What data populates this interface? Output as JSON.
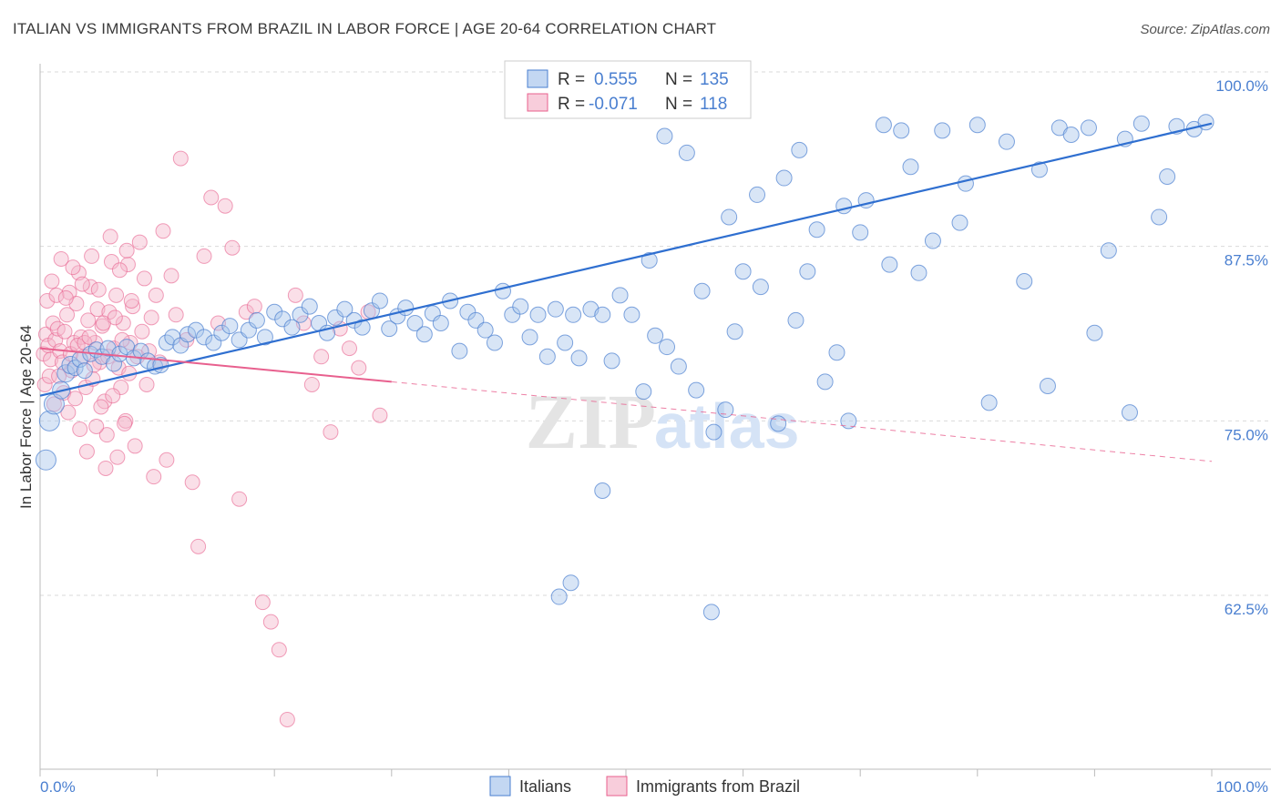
{
  "title": "ITALIAN VS IMMIGRANTS FROM BRAZIL IN LABOR FORCE | AGE 20-64 CORRELATION CHART",
  "source": "Source: ZipAtlas.com",
  "watermark": {
    "zip": "ZIP",
    "atlas": "atlas"
  },
  "colors": {
    "blue": "#4a7fd0",
    "blue_fill": "#a9c6ec",
    "blue_line": "#2f6fd0",
    "pink": "#e8608e",
    "pink_fill": "#f5b8cc",
    "pink_line": "#e8608e"
  },
  "legend": {
    "blue": {
      "r_label": "R = ",
      "r_value": "0.555",
      "n_label": "N = ",
      "n_value": "135"
    },
    "pink": {
      "r_label": "R = ",
      "r_value": "-0.071",
      "n_label": "N = ",
      "n_value": "118"
    }
  },
  "chart_data": {
    "type": "scatter",
    "title": "ITALIAN VS IMMIGRANTS FROM BRAZIL IN LABOR FORCE | AGE 20-64 CORRELATION CHART",
    "xlabel": "",
    "ylabel": "In Labor Force | Age 20-64",
    "xlim": [
      0,
      100
    ],
    "ylim": [
      53,
      101
    ],
    "x_tick_labels": [
      "0.0%",
      "100.0%"
    ],
    "y_ticks": [
      62.5,
      75.0,
      87.5,
      100.0
    ],
    "y_tick_labels": [
      "62.5%",
      "75.0%",
      "87.5%",
      "100.0%"
    ],
    "grid": true,
    "legend_position": "top-center",
    "series": [
      {
        "name": "Italians",
        "color": "#4a7fd0",
        "trend": {
          "x": [
            0,
            100
          ],
          "y": [
            76.8,
            96.3
          ]
        },
        "points": [
          [
            0.5,
            72.2
          ],
          [
            0.8,
            75.0
          ],
          [
            1.2,
            76.2
          ],
          [
            1.8,
            77.2
          ],
          [
            2.2,
            78.4
          ],
          [
            2.6,
            79.0
          ],
          [
            3.0,
            78.8
          ],
          [
            3.4,
            79.4
          ],
          [
            3.8,
            78.6
          ],
          [
            4.3,
            79.8
          ],
          [
            4.8,
            80.1
          ],
          [
            5.3,
            79.6
          ],
          [
            5.8,
            80.2
          ],
          [
            6.3,
            79.1
          ],
          [
            6.8,
            79.8
          ],
          [
            7.4,
            80.3
          ],
          [
            8.0,
            79.5
          ],
          [
            8.6,
            80.0
          ],
          [
            9.2,
            79.3
          ],
          [
            9.8,
            78.9
          ],
          [
            10.3,
            79.0
          ],
          [
            10.8,
            80.6
          ],
          [
            11.3,
            81.0
          ],
          [
            12.0,
            80.4
          ],
          [
            12.6,
            81.2
          ],
          [
            13.3,
            81.5
          ],
          [
            14.0,
            81.0
          ],
          [
            14.8,
            80.6
          ],
          [
            15.5,
            81.3
          ],
          [
            16.2,
            81.8
          ],
          [
            17.0,
            80.8
          ],
          [
            17.8,
            81.5
          ],
          [
            18.5,
            82.2
          ],
          [
            19.2,
            81.0
          ],
          [
            20.0,
            82.8
          ],
          [
            20.7,
            82.3
          ],
          [
            21.5,
            81.7
          ],
          [
            22.2,
            82.6
          ],
          [
            23.0,
            83.2
          ],
          [
            23.8,
            82.0
          ],
          [
            24.5,
            81.3
          ],
          [
            25.2,
            82.4
          ],
          [
            26.0,
            83.0
          ],
          [
            26.8,
            82.2
          ],
          [
            27.5,
            81.7
          ],
          [
            28.3,
            82.9
          ],
          [
            29.0,
            83.6
          ],
          [
            29.8,
            81.6
          ],
          [
            30.5,
            82.5
          ],
          [
            31.2,
            83.1
          ],
          [
            32.0,
            82.0
          ],
          [
            32.8,
            81.2
          ],
          [
            33.5,
            82.7
          ],
          [
            34.2,
            82.0
          ],
          [
            35.0,
            83.6
          ],
          [
            35.8,
            80.0
          ],
          [
            36.5,
            82.8
          ],
          [
            37.2,
            82.2
          ],
          [
            38.0,
            81.5
          ],
          [
            38.8,
            80.6
          ],
          [
            39.5,
            84.3
          ],
          [
            40.3,
            82.6
          ],
          [
            41.0,
            83.2
          ],
          [
            41.8,
            81.0
          ],
          [
            42.5,
            82.6
          ],
          [
            43.3,
            79.6
          ],
          [
            44.0,
            83.0
          ],
          [
            44.8,
            80.6
          ],
          [
            45.5,
            82.6
          ],
          [
            46.0,
            79.5
          ],
          [
            47.0,
            83.0
          ],
          [
            48.0,
            82.6
          ],
          [
            48.8,
            79.3
          ],
          [
            49.5,
            84.0
          ],
          [
            50.5,
            82.6
          ],
          [
            51.5,
            77.1
          ],
          [
            52.5,
            81.1
          ],
          [
            53.5,
            80.3
          ],
          [
            54.5,
            78.9
          ],
          [
            56.0,
            77.2
          ],
          [
            56.5,
            84.3
          ],
          [
            57.5,
            74.2
          ],
          [
            58.5,
            75.8
          ],
          [
            59.3,
            81.4
          ],
          [
            60.0,
            85.7
          ],
          [
            61.5,
            84.6
          ],
          [
            63.0,
            74.8
          ],
          [
            64.5,
            82.2
          ],
          [
            65.5,
            85.7
          ],
          [
            67.0,
            77.8
          ],
          [
            68.0,
            79.9
          ],
          [
            69.0,
            75.0
          ],
          [
            70.0,
            88.5
          ],
          [
            72.5,
            86.2
          ],
          [
            75.0,
            85.6
          ],
          [
            77.0,
            95.8
          ],
          [
            78.5,
            89.2
          ],
          [
            80.0,
            96.2
          ],
          [
            81.0,
            76.3
          ],
          [
            84.0,
            85.0
          ],
          [
            86.0,
            77.5
          ],
          [
            87.0,
            96.0
          ],
          [
            90.0,
            81.3
          ],
          [
            93.0,
            75.6
          ],
          [
            95.5,
            89.6
          ],
          [
            97.0,
            96.1
          ],
          [
            98.5,
            95.9
          ],
          [
            99.5,
            96.4
          ],
          [
            45.3,
            63.4
          ],
          [
            44.3,
            62.4
          ],
          [
            57.3,
            61.3
          ],
          [
            48.0,
            70.0
          ],
          [
            52.0,
            86.5
          ],
          [
            53.3,
            95.4
          ],
          [
            55.2,
            94.2
          ],
          [
            58.8,
            89.6
          ],
          [
            61.2,
            91.2
          ],
          [
            63.5,
            92.4
          ],
          [
            64.8,
            94.4
          ],
          [
            66.3,
            88.7
          ],
          [
            68.6,
            90.4
          ],
          [
            70.5,
            90.8
          ],
          [
            72.0,
            96.2
          ],
          [
            73.5,
            95.8
          ],
          [
            74.3,
            93.2
          ],
          [
            76.2,
            87.9
          ],
          [
            79.0,
            92.0
          ],
          [
            82.5,
            95.0
          ],
          [
            85.3,
            93.0
          ],
          [
            88.0,
            95.5
          ],
          [
            89.5,
            96.0
          ],
          [
            91.2,
            87.2
          ],
          [
            92.6,
            95.2
          ],
          [
            94.0,
            96.3
          ],
          [
            96.2,
            92.5
          ]
        ]
      },
      {
        "name": "Immigrants from Brazil",
        "color": "#e8608e",
        "trend_solid": {
          "x": [
            0,
            30
          ],
          "y": [
            80.2,
            77.8
          ]
        },
        "trend_dashed": {
          "x": [
            30,
            100
          ],
          "y": [
            77.8,
            72.1
          ]
        },
        "points": [
          [
            0.3,
            79.8
          ],
          [
            0.5,
            81.2
          ],
          [
            0.7,
            80.4
          ],
          [
            0.9,
            79.4
          ],
          [
            1.1,
            82.0
          ],
          [
            1.3,
            80.8
          ],
          [
            1.5,
            81.6
          ],
          [
            1.7,
            80.0
          ],
          [
            1.9,
            79.2
          ],
          [
            2.1,
            81.4
          ],
          [
            2.3,
            82.6
          ],
          [
            2.5,
            84.2
          ],
          [
            2.7,
            78.6
          ],
          [
            2.9,
            80.6
          ],
          [
            3.1,
            83.4
          ],
          [
            3.3,
            85.6
          ],
          [
            3.5,
            81.0
          ],
          [
            3.7,
            79.6
          ],
          [
            3.9,
            77.4
          ],
          [
            4.1,
            82.2
          ],
          [
            4.3,
            84.6
          ],
          [
            4.5,
            78.0
          ],
          [
            4.7,
            80.6
          ],
          [
            4.9,
            83.0
          ],
          [
            5.1,
            79.2
          ],
          [
            5.3,
            81.8
          ],
          [
            5.5,
            76.4
          ],
          [
            5.7,
            74.0
          ],
          [
            5.9,
            82.8
          ],
          [
            6.1,
            86.4
          ],
          [
            6.3,
            80.2
          ],
          [
            6.5,
            84.0
          ],
          [
            6.7,
            78.8
          ],
          [
            6.9,
            77.4
          ],
          [
            7.1,
            82.0
          ],
          [
            7.3,
            75.0
          ],
          [
            7.5,
            86.2
          ],
          [
            7.7,
            80.6
          ],
          [
            7.9,
            83.2
          ],
          [
            8.1,
            73.2
          ],
          [
            8.3,
            79.6
          ],
          [
            8.5,
            87.8
          ],
          [
            8.7,
            81.4
          ],
          [
            8.9,
            85.2
          ],
          [
            9.1,
            77.6
          ],
          [
            9.3,
            80.0
          ],
          [
            9.5,
            82.4
          ],
          [
            9.7,
            71.0
          ],
          [
            9.9,
            84.0
          ],
          [
            10.2,
            79.2
          ],
          [
            10.5,
            88.6
          ],
          [
            10.8,
            72.2
          ],
          [
            11.2,
            85.4
          ],
          [
            11.6,
            82.6
          ],
          [
            12.0,
            93.8
          ],
          [
            12.5,
            80.8
          ],
          [
            13.0,
            70.6
          ],
          [
            13.5,
            66.0
          ],
          [
            14.0,
            86.8
          ],
          [
            14.6,
            91.0
          ],
          [
            15.2,
            82.0
          ],
          [
            15.8,
            90.4
          ],
          [
            16.4,
            87.4
          ],
          [
            17.0,
            69.4
          ],
          [
            17.6,
            82.8
          ],
          [
            18.3,
            83.2
          ],
          [
            19.0,
            62.0
          ],
          [
            19.7,
            60.6
          ],
          [
            20.4,
            58.6
          ],
          [
            21.1,
            53.6
          ],
          [
            21.8,
            84.0
          ],
          [
            22.5,
            82.0
          ],
          [
            23.2,
            77.6
          ],
          [
            24.0,
            79.6
          ],
          [
            24.8,
            74.2
          ],
          [
            25.6,
            81.6
          ],
          [
            26.4,
            80.2
          ],
          [
            27.2,
            78.8
          ],
          [
            28.0,
            82.8
          ],
          [
            29.0,
            75.4
          ],
          [
            0.4,
            77.6
          ],
          [
            0.6,
            83.6
          ],
          [
            0.8,
            78.2
          ],
          [
            1.0,
            85.0
          ],
          [
            1.2,
            76.2
          ],
          [
            1.4,
            84.0
          ],
          [
            1.6,
            78.2
          ],
          [
            1.8,
            86.6
          ],
          [
            2.0,
            77.0
          ],
          [
            2.2,
            83.8
          ],
          [
            2.4,
            75.6
          ],
          [
            2.6,
            79.8
          ],
          [
            2.8,
            86.0
          ],
          [
            3.0,
            76.6
          ],
          [
            3.2,
            80.4
          ],
          [
            3.4,
            74.4
          ],
          [
            3.6,
            84.8
          ],
          [
            3.8,
            80.6
          ],
          [
            4.0,
            72.8
          ],
          [
            4.2,
            81.0
          ],
          [
            4.4,
            86.8
          ],
          [
            4.6,
            79.0
          ],
          [
            4.8,
            74.6
          ],
          [
            5.0,
            84.4
          ],
          [
            5.2,
            76.0
          ],
          [
            5.4,
            82.0
          ],
          [
            5.6,
            71.6
          ],
          [
            5.8,
            79.6
          ],
          [
            6.0,
            88.2
          ],
          [
            6.2,
            76.8
          ],
          [
            6.4,
            82.4
          ],
          [
            6.6,
            72.4
          ],
          [
            6.8,
            85.8
          ],
          [
            7.0,
            80.8
          ],
          [
            7.2,
            74.8
          ],
          [
            7.4,
            87.2
          ],
          [
            7.6,
            78.4
          ],
          [
            7.8,
            83.6
          ]
        ]
      }
    ]
  }
}
